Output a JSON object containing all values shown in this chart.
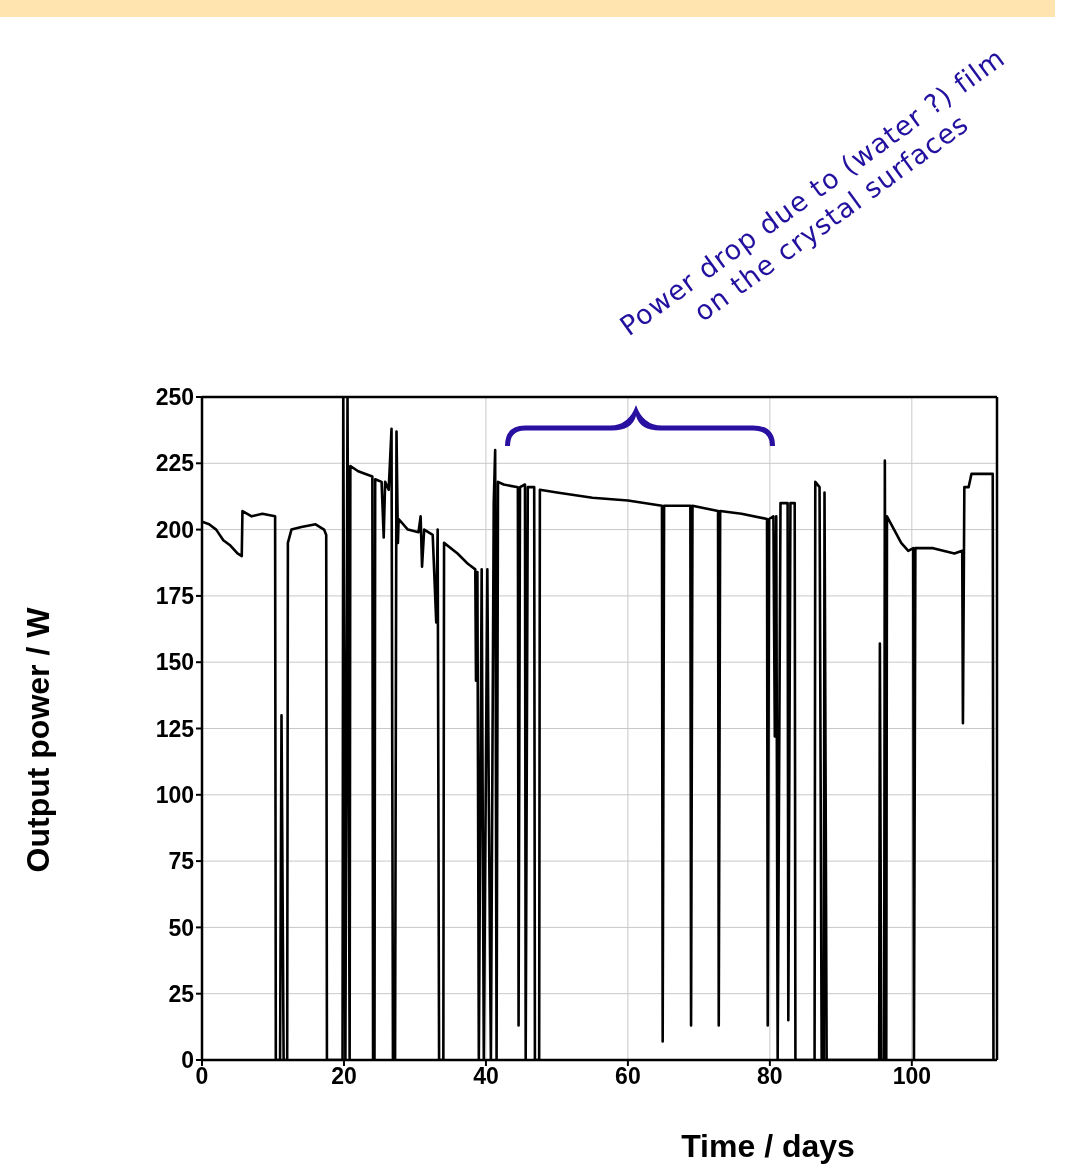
{
  "chart_data": {
    "type": "line",
    "xlabel": "Time / days",
    "ylabel": "Output power / W",
    "annotations": [
      "Power drop due to (water ?) film\non the crystal surfaces"
    ],
    "xlim": [
      0,
      112
    ],
    "xticks": [
      0,
      20,
      40,
      60,
      80,
      100
    ],
    "ylim": [
      0,
      250
    ],
    "yticks": [
      0,
      25,
      50,
      75,
      100,
      125,
      150,
      175,
      200,
      225,
      250
    ],
    "grid": true,
    "legend": false,
    "marker": "none",
    "line_style": "solid",
    "series": [
      {
        "color": "#000000",
        "x": [
          0,
          1,
          2,
          3,
          4,
          5,
          5.6,
          5.7,
          7,
          8.5,
          10.3,
          10.4,
          11,
          11.2,
          11.5,
          12,
          12.1,
          12.6,
          14,
          16,
          17.2,
          17.5,
          17.6,
          19.8,
          19.9,
          20.2,
          20.5,
          20.8,
          20.9,
          22,
          24,
          24.1,
          24.3,
          24.4,
          25.3,
          25.6,
          25.8,
          26.3,
          26.7,
          26.9,
          27.2,
          27.4,
          27.6,
          27.7,
          29,
          30.5,
          30.8,
          31,
          31.3,
          32.5,
          33,
          33.2,
          33.4,
          34,
          34.1,
          36,
          37.5,
          38.5,
          38.6,
          38.8,
          39,
          39.4,
          39.7,
          40.2,
          40.4,
          40.7,
          41.1,
          41.3,
          41.5,
          41.7,
          42.5,
          44.5,
          44.6,
          44.8,
          45.5,
          45.6,
          45.9,
          46.8,
          46.9,
          47.5,
          47.6,
          50,
          55,
          60,
          64.8,
          64.9,
          65.1,
          68.8,
          68.9,
          69.1,
          72.7,
          72.8,
          73,
          76,
          79.6,
          79.7,
          79.9,
          80.5,
          80.7,
          80.9,
          81.1,
          81.5,
          82.5,
          82.6,
          82.9,
          83.5,
          83.6,
          86.3,
          86.4,
          87,
          87.3,
          87.6,
          87.7,
          88,
          95.4,
          95.5,
          95.7,
          96.1,
          96.2,
          96.4,
          96.5,
          97.5,
          98.5,
          99.5,
          100.2,
          100.3,
          100.5,
          103,
          106,
          107.1,
          107.2,
          107.4,
          108,
          108.4,
          111.4,
          111.5
        ],
        "values": [
          203,
          202,
          200,
          196,
          194,
          191,
          190,
          207,
          205,
          206,
          205,
          0,
          0,
          130,
          0,
          0,
          195,
          200,
          201,
          202,
          200,
          198,
          0,
          0,
          250,
          0,
          250,
          0,
          224,
          222,
          220,
          0,
          0,
          219,
          218,
          197,
          218,
          215,
          238,
          0,
          0,
          237,
          195,
          204,
          200,
          199,
          205,
          186,
          200,
          198,
          165,
          200,
          0,
          0,
          195,
          191,
          187,
          185,
          143,
          184,
          0,
          185,
          0,
          185,
          100,
          0,
          210,
          230,
          0,
          218,
          217,
          216,
          13,
          216,
          217,
          0,
          216,
          216,
          0,
          0,
          215,
          214,
          212,
          211,
          209,
          7,
          209,
          209,
          13,
          209,
          207,
          13,
          207,
          206,
          204,
          13,
          204,
          205,
          122,
          205,
          0,
          210,
          210,
          15,
          210,
          210,
          0,
          0,
          218,
          216,
          0,
          0,
          214,
          0,
          0,
          157,
          0,
          0,
          226,
          0,
          205,
          200,
          195,
          192,
          193,
          0,
          193,
          193,
          191,
          192,
          127,
          216,
          216,
          221,
          221,
          0
        ]
      }
    ]
  }
}
